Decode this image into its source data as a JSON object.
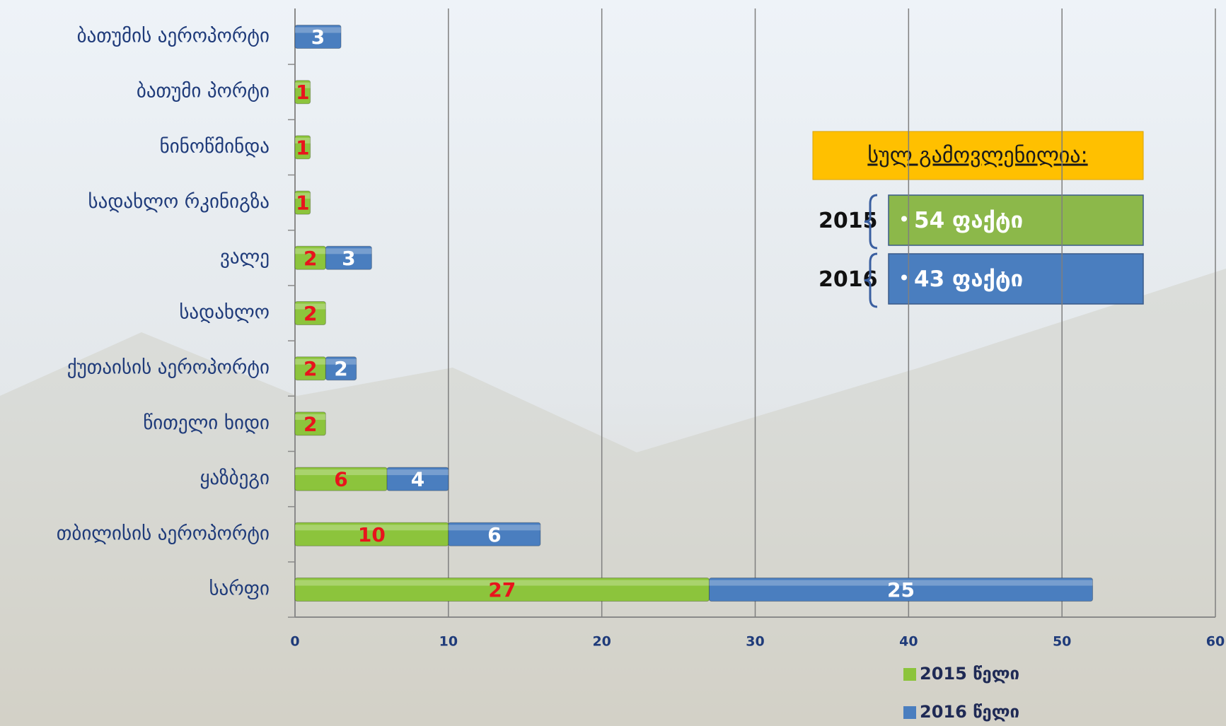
{
  "chart_data": {
    "type": "stacked-hbar",
    "categories": [
      "ბათუმის აეროპორტი",
      "ბათუმი პორტი",
      "ნინოწმინდა",
      "სადახლო რკინიგზა",
      "ვალე",
      "სადახლო",
      "ქუთაისის აეროპორტი",
      "წითელი ხიდი",
      "ყაზბეგი",
      "თბილისის აეროპორტი",
      "სარფი"
    ],
    "series": [
      {
        "name": "2015 წელი",
        "color": "#8cc43c",
        "label_color": "#e8141c",
        "values": [
          null,
          1,
          1,
          1,
          2,
          2,
          2,
          2,
          6,
          10,
          27
        ]
      },
      {
        "name": "2016 წელი",
        "color": "#4a7ebf",
        "label_color": "#ffffff",
        "values": [
          3,
          null,
          null,
          null,
          3,
          null,
          2,
          null,
          4,
          6,
          25
        ]
      }
    ],
    "xlim": [
      0,
      60
    ],
    "xticks": [
      0,
      10,
      20,
      30,
      40,
      50,
      60
    ],
    "grid": true,
    "legend": "bottom-right",
    "summary": {
      "title": "სულ გამოვლენილია:",
      "items": [
        {
          "year": "2015",
          "text": "54 ფაქტი",
          "color": "#8cb84a"
        },
        {
          "year": "2016",
          "text": "43 ფაქტი",
          "color": "#4a7ebf"
        }
      ]
    }
  }
}
